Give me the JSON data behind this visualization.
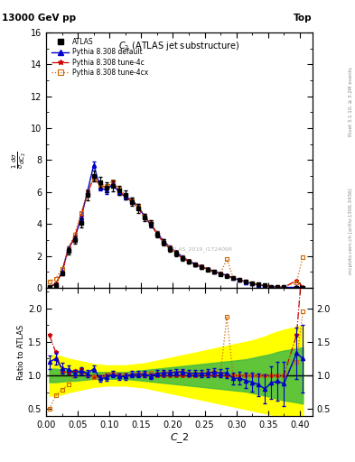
{
  "title_top_left": "13000 GeV pp",
  "title_top_right": "Top",
  "title_center": "C_{2} (ATLAS jet substructure)",
  "xlabel": "C_2",
  "ylabel_main": "1/sigma d-sigma/dC_2",
  "ylabel_ratio": "Ratio to ATLAS",
  "watermark": "ATLAS_2019_I1724098",
  "xlim": [
    0.0,
    0.42
  ],
  "ylim_main": [
    0,
    16
  ],
  "ylim_ratio": [
    0.4,
    2.3
  ],
  "x_data": [
    0.005,
    0.015,
    0.025,
    0.035,
    0.045,
    0.055,
    0.065,
    0.075,
    0.085,
    0.095,
    0.105,
    0.115,
    0.125,
    0.135,
    0.145,
    0.155,
    0.165,
    0.175,
    0.185,
    0.195,
    0.205,
    0.215,
    0.225,
    0.235,
    0.245,
    0.255,
    0.265,
    0.275,
    0.285,
    0.295,
    0.305,
    0.315,
    0.325,
    0.335,
    0.345,
    0.355,
    0.365,
    0.375,
    0.395,
    0.405
  ],
  "atlas_y": [
    0.05,
    0.2,
    0.9,
    2.3,
    3.0,
    4.1,
    5.8,
    7.0,
    6.6,
    6.3,
    6.4,
    6.1,
    5.8,
    5.4,
    5.0,
    4.4,
    4.0,
    3.35,
    2.85,
    2.45,
    2.15,
    1.85,
    1.65,
    1.45,
    1.3,
    1.15,
    1.0,
    0.88,
    0.76,
    0.65,
    0.52,
    0.4,
    0.3,
    0.22,
    0.15,
    0.09,
    0.06,
    0.04,
    0.03,
    0.02
  ],
  "atlas_yerr": [
    0.015,
    0.04,
    0.1,
    0.18,
    0.22,
    0.28,
    0.32,
    0.33,
    0.33,
    0.33,
    0.33,
    0.28,
    0.28,
    0.28,
    0.28,
    0.23,
    0.23,
    0.18,
    0.18,
    0.16,
    0.15,
    0.13,
    0.12,
    0.11,
    0.1,
    0.09,
    0.08,
    0.07,
    0.07,
    0.06,
    0.06,
    0.05,
    0.04,
    0.04,
    0.03,
    0.02,
    0.02,
    0.02,
    0.01,
    0.01
  ],
  "py_default_y": [
    0.06,
    0.25,
    1.0,
    2.5,
    3.1,
    4.4,
    6.0,
    7.7,
    6.3,
    6.1,
    6.5,
    6.0,
    5.7,
    5.5,
    5.1,
    4.5,
    3.95,
    3.45,
    2.95,
    2.55,
    2.25,
    1.95,
    1.7,
    1.5,
    1.34,
    1.19,
    1.05,
    0.91,
    0.79,
    0.62,
    0.5,
    0.37,
    0.27,
    0.19,
    0.12,
    0.08,
    0.055,
    0.035,
    0.04,
    0.025
  ],
  "py_default_yerr": [
    0.008,
    0.025,
    0.07,
    0.1,
    0.13,
    0.16,
    0.18,
    0.2,
    0.2,
    0.2,
    0.2,
    0.18,
    0.16,
    0.16,
    0.16,
    0.13,
    0.12,
    0.1,
    0.1,
    0.09,
    0.08,
    0.07,
    0.06,
    0.06,
    0.055,
    0.05,
    0.045,
    0.04,
    0.04,
    0.035,
    0.03,
    0.025,
    0.02,
    0.015,
    0.012,
    0.01,
    0.008,
    0.006,
    0.01,
    0.005
  ],
  "py_tune4c_y": [
    0.08,
    0.27,
    0.95,
    2.4,
    3.2,
    4.5,
    5.9,
    6.9,
    6.4,
    6.3,
    6.6,
    6.1,
    5.7,
    5.4,
    5.0,
    4.4,
    4.05,
    3.35,
    2.85,
    2.45,
    2.15,
    1.85,
    1.65,
    1.45,
    1.3,
    1.15,
    1.0,
    0.88,
    0.76,
    0.65,
    0.52,
    0.4,
    0.3,
    0.22,
    0.15,
    0.09,
    0.06,
    0.04,
    0.48,
    0.055
  ],
  "py_tune4cx_y": [
    0.4,
    0.6,
    1.2,
    2.5,
    3.35,
    4.7,
    6.0,
    6.85,
    6.5,
    6.4,
    6.7,
    6.2,
    5.85,
    5.5,
    5.15,
    4.55,
    4.15,
    3.45,
    2.95,
    2.55,
    2.25,
    1.95,
    1.7,
    1.5,
    1.34,
    1.19,
    1.05,
    0.91,
    1.8,
    0.65,
    0.52,
    0.4,
    0.3,
    0.22,
    0.15,
    0.09,
    0.06,
    0.04,
    0.36,
    1.95
  ],
  "ratio_default_y": [
    1.2,
    1.25,
    1.11,
    1.09,
    1.03,
    1.07,
    1.03,
    1.1,
    0.955,
    0.968,
    1.016,
    0.984,
    0.983,
    1.019,
    1.02,
    1.023,
    0.988,
    1.03,
    1.035,
    1.041,
    1.047,
    1.054,
    1.03,
    1.034,
    1.031,
    1.035,
    1.05,
    1.034,
    1.039,
    0.954,
    0.962,
    0.925,
    0.9,
    0.864,
    0.8,
    0.889,
    0.917,
    0.875,
    1.33,
    1.25
  ],
  "ratio_default_yerr": [
    0.1,
    0.09,
    0.08,
    0.06,
    0.055,
    0.055,
    0.05,
    0.048,
    0.048,
    0.048,
    0.048,
    0.047,
    0.047,
    0.047,
    0.047,
    0.046,
    0.046,
    0.046,
    0.046,
    0.046,
    0.046,
    0.046,
    0.046,
    0.047,
    0.055,
    0.058,
    0.06,
    0.065,
    0.075,
    0.088,
    0.098,
    0.115,
    0.14,
    0.17,
    0.21,
    0.24,
    0.29,
    0.33,
    0.38,
    0.5
  ],
  "ratio_4c_y": [
    1.6,
    1.35,
    1.055,
    1.043,
    1.067,
    1.098,
    1.017,
    0.986,
    0.97,
    1.0,
    1.031,
    1.0,
    0.983,
    1.0,
    1.0,
    1.0,
    1.013,
    1.0,
    1.0,
    1.0,
    1.0,
    1.0,
    1.0,
    1.0,
    1.0,
    1.0,
    1.0,
    1.0,
    1.0,
    1.0,
    1.0,
    1.0,
    1.0,
    1.0,
    1.0,
    1.0,
    1.0,
    1.0,
    1.6,
    2.75
  ],
  "ratio_4cx_y": [
    0.5,
    0.7,
    0.78,
    0.87,
    1.017,
    1.049,
    1.0,
    0.979,
    0.985,
    1.016,
    1.047,
    1.016,
    1.009,
    1.019,
    1.03,
    1.023,
    1.038,
    1.03,
    1.035,
    1.041,
    1.047,
    1.054,
    1.03,
    1.034,
    1.031,
    1.035,
    1.05,
    1.034,
    1.868,
    1.0,
    1.0,
    1.0,
    1.0,
    1.0,
    1.0,
    1.0,
    1.0,
    1.0,
    1.2,
    1.95
  ],
  "green_band_lo": [
    0.9,
    0.9,
    0.91,
    0.92,
    0.92,
    0.93,
    0.94,
    0.95,
    0.95,
    0.95,
    0.95,
    0.95,
    0.95,
    0.94,
    0.93,
    0.92,
    0.91,
    0.9,
    0.89,
    0.88,
    0.87,
    0.86,
    0.85,
    0.84,
    0.83,
    0.82,
    0.81,
    0.8,
    0.79,
    0.78,
    0.77,
    0.76,
    0.74,
    0.72,
    0.7,
    0.68,
    0.65,
    0.63,
    0.6,
    0.58
  ],
  "green_band_hi": [
    1.1,
    1.1,
    1.09,
    1.08,
    1.08,
    1.07,
    1.06,
    1.05,
    1.05,
    1.05,
    1.05,
    1.05,
    1.05,
    1.06,
    1.07,
    1.08,
    1.09,
    1.1,
    1.11,
    1.12,
    1.13,
    1.14,
    1.15,
    1.16,
    1.17,
    1.18,
    1.19,
    1.2,
    1.21,
    1.22,
    1.23,
    1.24,
    1.26,
    1.28,
    1.3,
    1.32,
    1.35,
    1.37,
    1.4,
    1.42
  ],
  "yellow_band_lo": [
    0.7,
    0.7,
    0.72,
    0.75,
    0.77,
    0.79,
    0.81,
    0.83,
    0.84,
    0.85,
    0.85,
    0.85,
    0.85,
    0.84,
    0.83,
    0.82,
    0.8,
    0.78,
    0.76,
    0.74,
    0.72,
    0.7,
    0.68,
    0.66,
    0.64,
    0.62,
    0.6,
    0.58,
    0.56,
    0.54,
    0.52,
    0.5,
    0.48,
    0.46,
    0.44,
    0.42,
    0.4,
    0.38,
    0.36,
    0.34
  ],
  "yellow_band_hi": [
    1.3,
    1.3,
    1.28,
    1.25,
    1.23,
    1.21,
    1.19,
    1.17,
    1.16,
    1.15,
    1.15,
    1.15,
    1.15,
    1.16,
    1.17,
    1.18,
    1.2,
    1.22,
    1.24,
    1.26,
    1.28,
    1.3,
    1.32,
    1.34,
    1.36,
    1.38,
    1.4,
    1.42,
    1.44,
    1.46,
    1.48,
    1.5,
    1.52,
    1.55,
    1.58,
    1.62,
    1.65,
    1.68,
    1.72,
    1.75
  ],
  "color_atlas": "#000000",
  "color_default": "#0000CC",
  "color_4c": "#CC0000",
  "color_4cx": "#CC6600",
  "legend_labels": [
    "ATLAS",
    "Pythia 8.308 default",
    "Pythia 8.308 tune-4c",
    "Pythia 8.308 tune-4cx"
  ]
}
